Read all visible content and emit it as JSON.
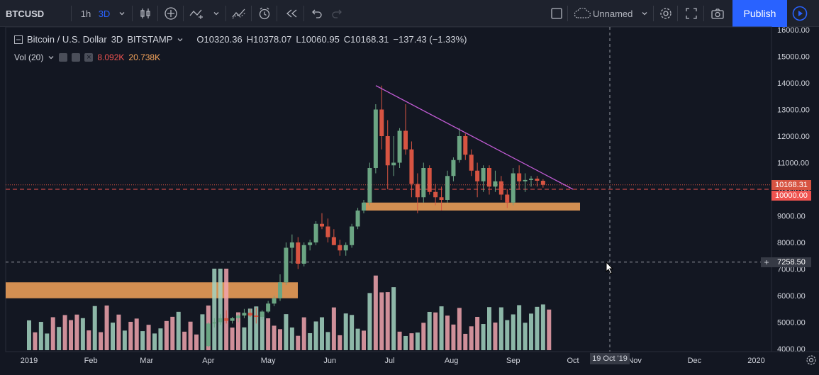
{
  "toolbar": {
    "symbol": "BTCUSD",
    "interval_1h": "1h",
    "interval_3d": "3D",
    "layout_name": "Unnamed",
    "publish": "Publish"
  },
  "legend": {
    "title": "Bitcoin / U.S. Dollar",
    "interval": "3D",
    "exchange": "BITSTAMP",
    "open": "O10320.36",
    "high": "H10378.07",
    "low": "L10060.95",
    "close": "C10168.31",
    "change": "−137.43 (−1.33%)"
  },
  "volume": {
    "label": "Vol (20)",
    "value1": "8.092K",
    "value2": "20.738K",
    "value1_color": "#ef5350",
    "value2_color": "#f6a55b"
  },
  "price_axis": {
    "ticks": [
      "16000.00",
      "15000.00",
      "14000.00",
      "13000.00",
      "12000.00",
      "11000.00",
      "10000.00",
      "9000.00",
      "8000.00",
      "7000.00",
      "6000.00",
      "5000.00",
      "4000.00"
    ],
    "last_price": "10168.31",
    "level": "10000.00",
    "crosshair": "7258.50"
  },
  "time_axis": {
    "labels": [
      "2019",
      "Feb",
      "Mar",
      "Apr",
      "May",
      "Jun",
      "Jul",
      "Aug",
      "Sep",
      "Oct",
      "Nov",
      "Dec",
      "2020"
    ],
    "crosshair": "19 Oct '19"
  },
  "colors": {
    "up": "#6ba583",
    "down": "#d75442",
    "trendline": "#c35cd6",
    "zone": "#f6a55b",
    "accent": "#2962ff"
  },
  "chart_data": {
    "type": "candlestick",
    "title": "Bitcoin / U.S. Dollar",
    "ylim": [
      4000,
      16000
    ],
    "annotations": [
      "descending trendline",
      "support zone 9200-9500",
      "zone 5900-6500",
      "horizontal level 10000"
    ],
    "candles": [
      {
        "date": "2019-04-01",
        "o": 4100,
        "h": 5000,
        "l": 4050,
        "c": 4950
      },
      {
        "date": "2019-04-04",
        "o": 4950,
        "h": 5150,
        "l": 4800,
        "c": 5000
      },
      {
        "date": "2019-04-07",
        "o": 5000,
        "h": 5300,
        "l": 4900,
        "c": 5150
      },
      {
        "date": "2019-04-10",
        "o": 5150,
        "h": 5450,
        "l": 4950,
        "c": 5050
      },
      {
        "date": "2019-04-13",
        "o": 5050,
        "h": 5200,
        "l": 4950,
        "c": 5150
      },
      {
        "date": "2019-04-16",
        "o": 5150,
        "h": 5300,
        "l": 5000,
        "c": 5250
      },
      {
        "date": "2019-04-19",
        "o": 5250,
        "h": 5500,
        "l": 5150,
        "c": 5350
      },
      {
        "date": "2019-04-22",
        "o": 5350,
        "h": 5500,
        "l": 5200,
        "c": 5250
      },
      {
        "date": "2019-04-25",
        "o": 5250,
        "h": 5550,
        "l": 4950,
        "c": 5200
      },
      {
        "date": "2019-04-28",
        "o": 5200,
        "h": 5450,
        "l": 5100,
        "c": 5400
      },
      {
        "date": "2019-05-01",
        "o": 5400,
        "h": 5800,
        "l": 5350,
        "c": 5700
      },
      {
        "date": "2019-05-04",
        "o": 5700,
        "h": 6000,
        "l": 5600,
        "c": 5900
      },
      {
        "date": "2019-05-07",
        "o": 5900,
        "h": 6800,
        "l": 5800,
        "c": 6500
      },
      {
        "date": "2019-05-10",
        "o": 6500,
        "h": 8000,
        "l": 6400,
        "c": 7800
      },
      {
        "date": "2019-05-13",
        "o": 7800,
        "h": 8300,
        "l": 7200,
        "c": 8000
      },
      {
        "date": "2019-05-16",
        "o": 8000,
        "h": 8200,
        "l": 7000,
        "c": 7200
      },
      {
        "date": "2019-05-19",
        "o": 7200,
        "h": 8000,
        "l": 7100,
        "c": 7900
      },
      {
        "date": "2019-05-22",
        "o": 7900,
        "h": 8100,
        "l": 7700,
        "c": 8000
      },
      {
        "date": "2019-05-25",
        "o": 8000,
        "h": 8800,
        "l": 7900,
        "c": 8700
      },
      {
        "date": "2019-05-28",
        "o": 8700,
        "h": 9100,
        "l": 8500,
        "c": 8600
      },
      {
        "date": "2019-05-31",
        "o": 8600,
        "h": 8900,
        "l": 8000,
        "c": 8200
      },
      {
        "date": "2019-06-03",
        "o": 8200,
        "h": 8500,
        "l": 7900,
        "c": 7900
      },
      {
        "date": "2019-06-06",
        "o": 7900,
        "h": 8100,
        "l": 7500,
        "c": 7700
      },
      {
        "date": "2019-06-09",
        "o": 7700,
        "h": 8000,
        "l": 7500,
        "c": 7900
      },
      {
        "date": "2019-06-12",
        "o": 7900,
        "h": 8700,
        "l": 7800,
        "c": 8600
      },
      {
        "date": "2019-06-15",
        "o": 8600,
        "h": 9300,
        "l": 8500,
        "c": 9200
      },
      {
        "date": "2019-06-18",
        "o": 9200,
        "h": 9600,
        "l": 9100,
        "c": 9500
      },
      {
        "date": "2019-06-21",
        "o": 9500,
        "h": 11000,
        "l": 9400,
        "c": 10800
      },
      {
        "date": "2019-06-24",
        "o": 10800,
        "h": 13200,
        "l": 10600,
        "c": 13000
      },
      {
        "date": "2019-06-27",
        "o": 13000,
        "h": 13900,
        "l": 11500,
        "c": 12000
      },
      {
        "date": "2019-06-30",
        "o": 12000,
        "h": 12600,
        "l": 10000,
        "c": 10900
      },
      {
        "date": "2019-07-03",
        "o": 10900,
        "h": 12000,
        "l": 10500,
        "c": 11000
      },
      {
        "date": "2019-07-06",
        "o": 11000,
        "h": 12300,
        "l": 10800,
        "c": 12200
      },
      {
        "date": "2019-07-09",
        "o": 12200,
        "h": 13200,
        "l": 11300,
        "c": 11500
      },
      {
        "date": "2019-07-12",
        "o": 11500,
        "h": 11800,
        "l": 9700,
        "c": 10200
      },
      {
        "date": "2019-07-15",
        "o": 10200,
        "h": 10600,
        "l": 9100,
        "c": 9700
      },
      {
        "date": "2019-07-18",
        "o": 9700,
        "h": 11000,
        "l": 9500,
        "c": 10800
      },
      {
        "date": "2019-07-21",
        "o": 10800,
        "h": 10900,
        "l": 9800,
        "c": 9900
      },
      {
        "date": "2019-07-24",
        "o": 9900,
        "h": 10200,
        "l": 9400,
        "c": 9700
      },
      {
        "date": "2019-07-27",
        "o": 9700,
        "h": 10100,
        "l": 9200,
        "c": 9600
      },
      {
        "date": "2019-07-30",
        "o": 9600,
        "h": 10700,
        "l": 9500,
        "c": 10500
      },
      {
        "date": "2019-08-02",
        "o": 10500,
        "h": 11200,
        "l": 10300,
        "c": 11100
      },
      {
        "date": "2019-08-05",
        "o": 11100,
        "h": 12300,
        "l": 11000,
        "c": 12000
      },
      {
        "date": "2019-08-08",
        "o": 12000,
        "h": 12100,
        "l": 11100,
        "c": 11300
      },
      {
        "date": "2019-08-11",
        "o": 11300,
        "h": 11500,
        "l": 10500,
        "c": 10700
      },
      {
        "date": "2019-08-14",
        "o": 10700,
        "h": 11000,
        "l": 9700,
        "c": 10300
      },
      {
        "date": "2019-08-17",
        "o": 10300,
        "h": 10900,
        "l": 9900,
        "c": 10800
      },
      {
        "date": "2019-08-20",
        "o": 10800,
        "h": 10900,
        "l": 9800,
        "c": 10100
      },
      {
        "date": "2019-08-23",
        "o": 10100,
        "h": 10700,
        "l": 9900,
        "c": 10300
      },
      {
        "date": "2019-08-26",
        "o": 10300,
        "h": 10500,
        "l": 9600,
        "c": 9800
      },
      {
        "date": "2019-08-29",
        "o": 9800,
        "h": 10000,
        "l": 9300,
        "c": 9500
      },
      {
        "date": "2019-09-01",
        "o": 9500,
        "h": 10800,
        "l": 9400,
        "c": 10600
      },
      {
        "date": "2019-09-04",
        "o": 10600,
        "h": 10900,
        "l": 10000,
        "c": 10300
      },
      {
        "date": "2019-09-07",
        "o": 10300,
        "h": 10600,
        "l": 9900,
        "c": 10350
      },
      {
        "date": "2019-09-10",
        "o": 10350,
        "h": 10500,
        "l": 10100,
        "c": 10400
      },
      {
        "date": "2019-09-13",
        "o": 10400,
        "h": 10500,
        "l": 10100,
        "c": 10320
      },
      {
        "date": "2019-09-16",
        "o": 10320,
        "h": 10378,
        "l": 10061,
        "c": 10168
      }
    ],
    "volumes_red_left": [
      {
        "date": "2019-01-01",
        "v": 0.2
      },
      {
        "date": "2019-01-04",
        "v": 0.18
      }
    ]
  }
}
